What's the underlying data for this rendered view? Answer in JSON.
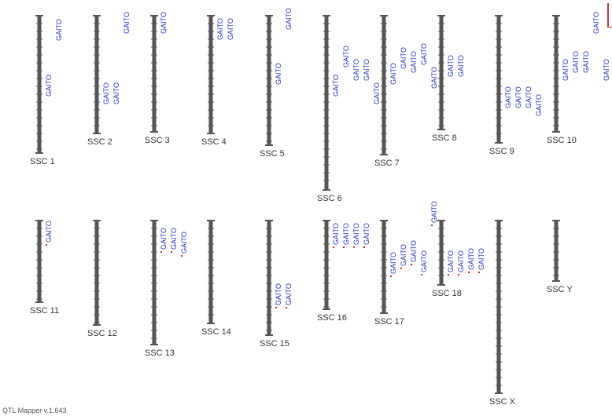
{
  "app": {
    "footer": "QTL Mapper v.1.643"
  },
  "colors": {
    "chromosome": "#555555",
    "qtl_text": "#2233cc",
    "marker": "#dd2222"
  },
  "trait_label": "GAITO",
  "chromosomes": [
    {
      "name": "SSC 1",
      "length": 175,
      "qtl": [
        75,
        4
      ]
    },
    {
      "name": "SSC 2",
      "length": 150,
      "qtl": [
        85,
        85,
        -5
      ]
    },
    {
      "name": "SSC 3",
      "length": 148,
      "qtl": [
        -5
      ]
    },
    {
      "name": "SSC 4",
      "length": 150,
      "qtl": [
        3,
        3
      ]
    },
    {
      "name": "SSC 5",
      "length": 165,
      "qtl": [
        60,
        -10
      ]
    },
    {
      "name": "SSC 6",
      "length": 222,
      "qtl": [
        75,
        38,
        55,
        55,
        85
      ]
    },
    {
      "name": "SSC 7",
      "length": 177,
      "qtl": [
        60,
        40,
        45,
        35,
        65
      ]
    },
    {
      "name": "SSC 8",
      "length": 145,
      "qtl": [
        50,
        50
      ]
    },
    {
      "name": "SSC 9",
      "length": 162,
      "qtl": [
        90,
        90,
        90,
        100
      ]
    },
    {
      "name": "SSC 10",
      "length": 148,
      "qtl": [
        55,
        45,
        45,
        -5,
        55,
        55,
        55
      ]
    },
    {
      "name": "SSC 11",
      "length": 104,
      "qtl": [
        0
      ]
    },
    {
      "name": "SSC 12",
      "length": 133,
      "qtl": []
    },
    {
      "name": "SSC 13",
      "length": 158,
      "qtl": [
        9,
        9,
        14
      ]
    },
    {
      "name": "SSC 14",
      "length": 131,
      "qtl": []
    },
    {
      "name": "SSC 15",
      "length": 146,
      "qtl": [
        80,
        80
      ]
    },
    {
      "name": "SSC 16",
      "length": 113,
      "qtl": [
        3,
        3,
        3,
        3
      ]
    },
    {
      "name": "SSC 17",
      "length": 118,
      "qtl": [
        40,
        30,
        25,
        38,
        -25
      ]
    },
    {
      "name": "SSC 18",
      "length": 82,
      "qtl": [
        38,
        38,
        35,
        35
      ]
    },
    {
      "name": "SSC X",
      "length": 220,
      "qtl": []
    },
    {
      "name": "SSC Y",
      "length": 77,
      "qtl": []
    }
  ]
}
